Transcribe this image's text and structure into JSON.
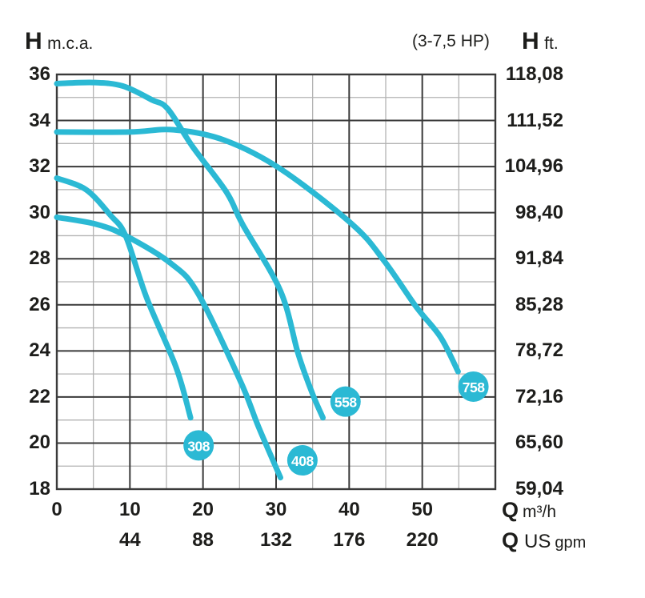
{
  "header": {
    "left_symbol": "H",
    "left_unit": "m.c.a.",
    "power_range": "(3-7,5 HP)",
    "right_symbol": "H",
    "right_unit": "ft."
  },
  "x_axis": {
    "m3h_symbol": "Q",
    "m3h_unit": "m³/h",
    "gpm_symbol": "Q",
    "gpm_unit_main": "US",
    "gpm_unit_sub": "gpm"
  },
  "colors": {
    "accent": "#2BB9D4",
    "badge_text": "#FFFFFF",
    "grid_major": "#3A3A3A",
    "grid_minor": "#B3B3B3",
    "text": "#1D1D1B"
  },
  "chart_data": {
    "type": "line",
    "title": "(3-7,5 HP)",
    "ylabel_left": "H m.c.a.",
    "ylabel_right": "H ft.",
    "xlabel_primary": "Q m³/h",
    "xlabel_secondary": "Q US gpm",
    "xlim": [
      0,
      60
    ],
    "ylim": [
      18,
      36
    ],
    "grid": {
      "x_major_step": 10,
      "x_minor_step": 5,
      "y_major_step": 2,
      "y_minor_step": 1,
      "visible": true
    },
    "left_ticks": [
      {
        "h": 36,
        "label": "36"
      },
      {
        "h": 34,
        "label": "34"
      },
      {
        "h": 32,
        "label": "32"
      },
      {
        "h": 30,
        "label": "30"
      },
      {
        "h": 28,
        "label": "28"
      },
      {
        "h": 26,
        "label": "26"
      },
      {
        "h": 24,
        "label": "24"
      },
      {
        "h": 22,
        "label": "22"
      },
      {
        "h": 20,
        "label": "20"
      },
      {
        "h": 18,
        "label": "18"
      }
    ],
    "right_ticks": [
      {
        "h": 36,
        "label": "118,08"
      },
      {
        "h": 34,
        "label": "111,52"
      },
      {
        "h": 32,
        "label": "104,96"
      },
      {
        "h": 30,
        "label": "98,40"
      },
      {
        "h": 28,
        "label": "91,84"
      },
      {
        "h": 26,
        "label": "85,28"
      },
      {
        "h": 24,
        "label": "78,72"
      },
      {
        "h": 22,
        "label": "72,16"
      },
      {
        "h": 20,
        "label": "65,60"
      },
      {
        "h": 18,
        "label": "59,04"
      }
    ],
    "x_ticks_m3h": [
      {
        "q": 0,
        "label": "0"
      },
      {
        "q": 10,
        "label": "10"
      },
      {
        "q": 20,
        "label": "20"
      },
      {
        "q": 30,
        "label": "30"
      },
      {
        "q": 40,
        "label": "40"
      },
      {
        "q": 50,
        "label": "50"
      }
    ],
    "x_ticks_gpm": [
      {
        "q": 10,
        "label": "44"
      },
      {
        "q": 20,
        "label": "88"
      },
      {
        "q": 30,
        "label": "132"
      },
      {
        "q": 40,
        "label": "176"
      },
      {
        "q": 50,
        "label": "220"
      }
    ],
    "series": [
      {
        "name": "308",
        "points": [
          [
            0,
            31.5
          ],
          [
            4,
            31.0
          ],
          [
            7.3,
            29.9
          ],
          [
            9.4,
            29.0
          ],
          [
            12.3,
            26.3
          ],
          [
            16.3,
            23.3
          ],
          [
            18.3,
            21.1
          ]
        ],
        "badge": {
          "q": 19.4,
          "h": 19.9,
          "label": "308"
        }
      },
      {
        "name": "408",
        "points": [
          [
            0,
            29.8
          ],
          [
            5.4,
            29.5
          ],
          [
            9.4,
            29.0
          ],
          [
            15.6,
            27.8
          ],
          [
            19.3,
            26.5
          ],
          [
            25.1,
            22.7
          ],
          [
            27.6,
            20.7
          ],
          [
            30.6,
            18.5
          ]
        ],
        "badge": {
          "q": 33.6,
          "h": 19.25,
          "label": "408"
        }
      },
      {
        "name": "558",
        "points": [
          [
            0,
            35.6
          ],
          [
            5,
            35.65
          ],
          [
            9,
            35.5
          ],
          [
            13,
            34.9
          ],
          [
            15.2,
            34.5
          ],
          [
            18.5,
            32.9
          ],
          [
            23.2,
            30.9
          ],
          [
            25.4,
            29.5
          ],
          [
            30.6,
            26.6
          ],
          [
            33,
            23.9
          ],
          [
            34.9,
            22.2
          ],
          [
            36.4,
            21.1
          ]
        ],
        "badge": {
          "q": 39.5,
          "h": 21.8,
          "label": "558"
        }
      },
      {
        "name": "758",
        "points": [
          [
            0,
            33.5
          ],
          [
            10,
            33.5
          ],
          [
            16,
            33.6
          ],
          [
            22.9,
            33.15
          ],
          [
            30.6,
            31.9
          ],
          [
            40.4,
            29.5
          ],
          [
            44.8,
            27.9
          ],
          [
            49.2,
            25.9
          ],
          [
            52.5,
            24.6
          ],
          [
            54.9,
            23.1
          ]
        ],
        "badge": {
          "q": 57.0,
          "h": 22.45,
          "label": "758"
        }
      }
    ]
  }
}
